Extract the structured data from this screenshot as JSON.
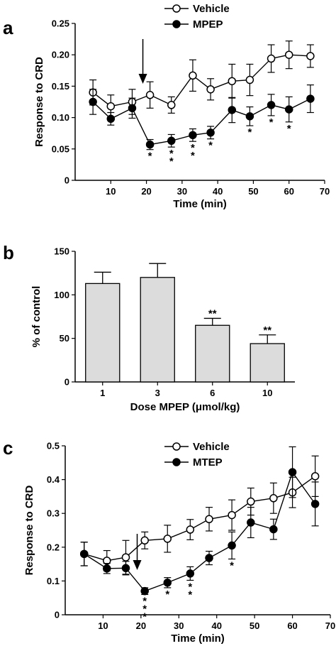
{
  "chart_data": [
    {
      "panel": "a",
      "type": "line",
      "xlabel": "Time (min)",
      "ylabel": "Response to CRD",
      "xlim": [
        0,
        70
      ],
      "ylim": [
        0,
        0.25
      ],
      "xticks": [
        10,
        20,
        30,
        40,
        50,
        60,
        70
      ],
      "yticks": [
        "0",
        "0.05",
        "0.10",
        "0.15",
        "0.20",
        "0.25"
      ],
      "grid": false,
      "legend": "top",
      "arrow_x": 19,
      "series": [
        {
          "name": "Vehicle",
          "marker": "open-circle",
          "x": [
            5,
            10,
            16,
            21,
            27,
            33,
            38,
            44,
            49,
            55,
            60,
            66
          ],
          "y": [
            0.14,
            0.118,
            0.125,
            0.136,
            0.12,
            0.167,
            0.145,
            0.158,
            0.16,
            0.194,
            0.2,
            0.198
          ],
          "err": [
            0.02,
            0.018,
            0.02,
            0.021,
            0.013,
            0.025,
            0.017,
            0.027,
            0.025,
            0.022,
            0.022,
            0.018
          ]
        },
        {
          "name": "MPEP",
          "marker": "filled-circle",
          "x": [
            5,
            10,
            16,
            21,
            27,
            33,
            38,
            44,
            49,
            55,
            60,
            66
          ],
          "y": [
            0.125,
            0.098,
            0.115,
            0.057,
            0.063,
            0.072,
            0.076,
            0.112,
            0.102,
            0.12,
            0.113,
            0.13
          ],
          "err": [
            0.02,
            0.01,
            0.016,
            0.008,
            0.01,
            0.01,
            0.01,
            0.02,
            0.015,
            0.017,
            0.02,
            0.022
          ]
        }
      ],
      "annotations": [
        {
          "x": 21,
          "text": "*"
        },
        {
          "x": 27,
          "text": "*"
        },
        {
          "x": 27,
          "text": "*"
        },
        {
          "x": 33,
          "text": "*"
        },
        {
          "x": 33,
          "text": "*"
        },
        {
          "x": 38,
          "text": "*"
        },
        {
          "x": 49,
          "text": "*"
        },
        {
          "x": 55,
          "text": "*"
        },
        {
          "x": 60,
          "text": "*"
        }
      ]
    },
    {
      "panel": "b",
      "type": "bar",
      "xlabel": "Dose MPEP (μmol/kg)",
      "ylabel": "% of control",
      "ylim": [
        0,
        150
      ],
      "yticks": [
        "0",
        "50",
        "100",
        "150"
      ],
      "categories": [
        "1",
        "3",
        "6",
        "10"
      ],
      "values": [
        113,
        120,
        65,
        44
      ],
      "err": [
        13,
        16,
        8,
        10
      ],
      "bar_color": "#dcdcdc",
      "annotations": [
        "",
        "",
        "**",
        "**"
      ]
    },
    {
      "panel": "c",
      "type": "line",
      "xlabel": "Time (min)",
      "ylabel": "Response to CRD",
      "xlim": [
        0,
        70
      ],
      "ylim": [
        0,
        0.5
      ],
      "xticks": [
        10,
        20,
        30,
        40,
        50,
        60,
        70
      ],
      "xtick_labels": [
        "10",
        "20",
        "30",
        "40",
        "50",
        "60",
        "70"
      ],
      "yticks": [
        "0",
        "0.1",
        "0.2",
        "0.3",
        "0.4",
        "0.5"
      ],
      "grid": false,
      "legend": "top",
      "arrow_x": 19,
      "series": [
        {
          "name": "Vehicle",
          "marker": "open-circle",
          "x": [
            5,
            11,
            16,
            21,
            27,
            33,
            38,
            44,
            49,
            55,
            60,
            66
          ],
          "y": [
            0.18,
            0.16,
            0.17,
            0.22,
            0.225,
            0.252,
            0.283,
            0.295,
            0.335,
            0.345,
            0.362,
            0.41
          ],
          "err": [
            0.035,
            0.03,
            0.05,
            0.025,
            0.04,
            0.03,
            0.035,
            0.045,
            0.04,
            0.045,
            0.045,
            0.06
          ]
        },
        {
          "name": "MTEP",
          "marker": "filled-circle",
          "x": [
            5,
            11,
            16,
            21,
            27,
            33,
            38,
            44,
            49,
            55,
            60,
            66
          ],
          "y": [
            0.18,
            0.137,
            0.138,
            0.07,
            0.095,
            0.122,
            0.168,
            0.205,
            0.273,
            0.253,
            0.422,
            0.328
          ],
          "err": [
            0.035,
            0.015,
            0.02,
            0.01,
            0.015,
            0.02,
            0.02,
            0.04,
            0.045,
            0.03,
            0.075,
            0.065
          ]
        }
      ],
      "annotations": [
        {
          "x": 21,
          "text": "*"
        },
        {
          "x": 21,
          "text": "*"
        },
        {
          "x": 21,
          "text": "*"
        },
        {
          "x": 27,
          "text": "*"
        },
        {
          "x": 33,
          "text": "*"
        },
        {
          "x": 33,
          "text": "*"
        },
        {
          "x": 44,
          "text": "*"
        }
      ]
    }
  ]
}
